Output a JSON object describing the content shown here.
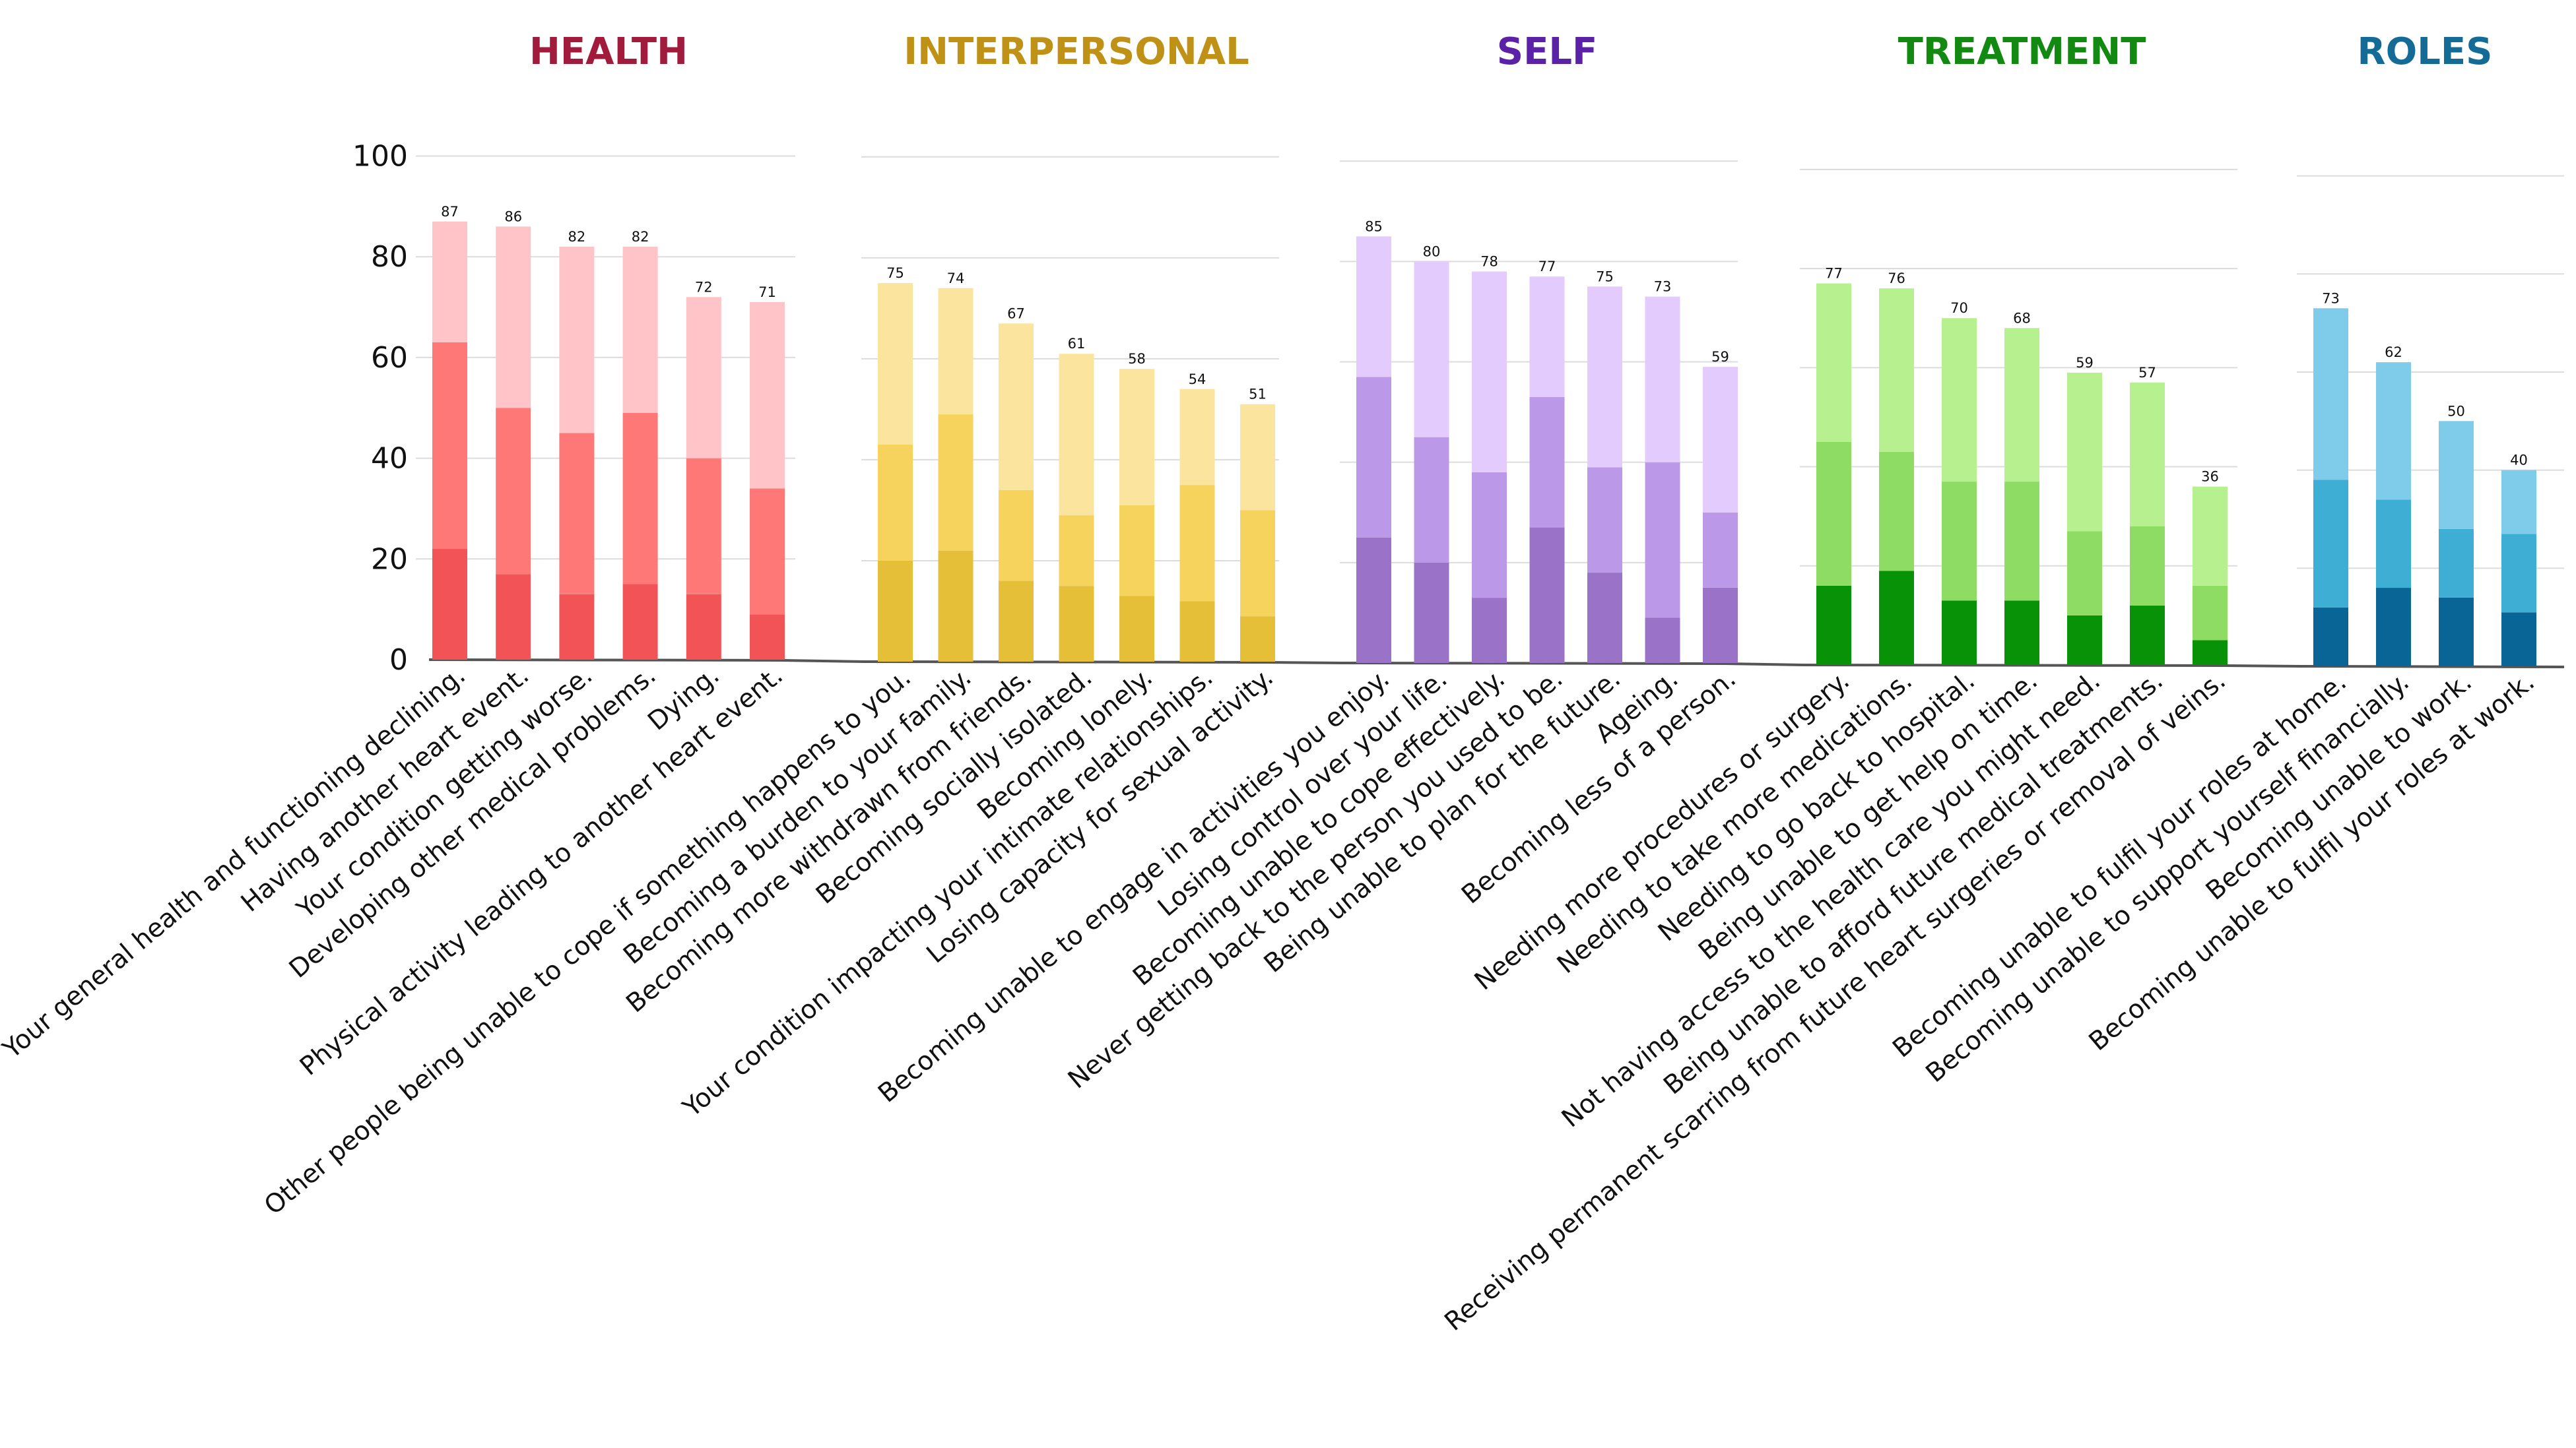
{
  "chart_data": {
    "type": "bar",
    "stacked": true,
    "ylim": [
      0,
      100
    ],
    "yticks": [
      0,
      20,
      40,
      60,
      80,
      100
    ],
    "grid": true,
    "groups": [
      {
        "title": "HEALTH",
        "color": "#a01b3c",
        "shades": [
          "#f25357",
          "#ff7878",
          "#ffc4c7"
        ],
        "bars": [
          {
            "label": "Your general health and functioning declining.",
            "segments": [
              22,
              41,
              24
            ],
            "total": "87"
          },
          {
            "label": "Having another heart event.",
            "segments": [
              17,
              33,
              36
            ],
            "total": "86"
          },
          {
            "label": "Your condition getting worse.",
            "segments": [
              13,
              32,
              37
            ],
            "total": "82"
          },
          {
            "label": "Developing other medical problems.",
            "segments": [
              15,
              34,
              33
            ],
            "total": "82"
          },
          {
            "label": "Dying.",
            "segments": [
              13,
              27,
              32
            ],
            "total": "72"
          },
          {
            "label": "Physical activity leading to another heart event.",
            "segments": [
              9,
              25,
              37
            ],
            "total": "71"
          }
        ]
      },
      {
        "title": "INTERPERSONAL",
        "color": "#bf9217",
        "shades": [
          "#e6bf38",
          "#f5d35d",
          "#fbe59e"
        ],
        "bars": [
          {
            "label": "Other people being unable to cope if something happens to you.",
            "segments": [
              20,
              23,
              32
            ],
            "total": "75"
          },
          {
            "label": "Becoming a burden to your family.",
            "segments": [
              22,
              27,
              25
            ],
            "total": "74"
          },
          {
            "label": "Becoming more withdrawn from friends.",
            "segments": [
              16,
              18,
              33
            ],
            "total": "67"
          },
          {
            "label": "Becoming socially isolated.",
            "segments": [
              15,
              14,
              32
            ],
            "total": "61"
          },
          {
            "label": "Becoming lonely.",
            "segments": [
              13,
              18,
              27
            ],
            "total": "58"
          },
          {
            "label": "Your condition impacting your intimate relationships.",
            "segments": [
              12,
              23,
              19
            ],
            "total": "54"
          },
          {
            "label": "Losing capacity for sexual activity.",
            "segments": [
              9,
              21,
              21
            ],
            "total": "51"
          }
        ]
      },
      {
        "title": "SELF",
        "color": "#5b22a8",
        "shades": [
          "#9a72c7",
          "#bb98e8",
          "#e3cbfd"
        ],
        "bars": [
          {
            "label": "Becoming unable to engage in activities you enjoy.",
            "segments": [
              25,
              32,
              28
            ],
            "total": "85"
          },
          {
            "label": "Losing control over your life.",
            "segments": [
              20,
              25,
              35
            ],
            "total": "80"
          },
          {
            "label": "Becoming unable to cope effectively.",
            "segments": [
              13,
              25,
              40
            ],
            "total": "78"
          },
          {
            "label": "Never getting back to the person you used to be.",
            "segments": [
              27,
              26,
              24
            ],
            "total": "77"
          },
          {
            "label": "Being unable to plan for the future.",
            "segments": [
              18,
              21,
              36
            ],
            "total": "75"
          },
          {
            "label": "Ageing.",
            "segments": [
              9,
              31,
              33
            ],
            "total": "73"
          },
          {
            "label": "Becoming less of a person.",
            "segments": [
              15,
              15,
              29
            ],
            "total": "59"
          }
        ]
      },
      {
        "title": "TREATMENT",
        "color": "#128a12",
        "shades": [
          "#079207",
          "#8edc64",
          "#b7f08f"
        ],
        "bars": [
          {
            "label": "Needing more procedures or surgery.",
            "segments": [
              16,
              29,
              32
            ],
            "total": "77"
          },
          {
            "label": "Needing to take more medications.",
            "segments": [
              19,
              24,
              33
            ],
            "total": "76"
          },
          {
            "label": "Needing to go back to hospital.",
            "segments": [
              13,
              24,
              33
            ],
            "total": "70"
          },
          {
            "label": "Being unable to get help on time.",
            "segments": [
              13,
              24,
              31
            ],
            "total": "68"
          },
          {
            "label": "Not having access to the health care you might need.",
            "segments": [
              10,
              17,
              32
            ],
            "total": "59"
          },
          {
            "label": "Being unable to afford future medical treatments.",
            "segments": [
              12,
              16,
              29
            ],
            "total": "57"
          },
          {
            "label": "Receiving permanent scarring from future heart surgeries or removal of veins.",
            "segments": [
              5,
              11,
              20
            ],
            "total": "36"
          }
        ]
      },
      {
        "title": "ROLES",
        "color": "#146c96",
        "shades": [
          "#0a6597",
          "#3eaed4",
          "#7fcbea"
        ],
        "bars": [
          {
            "label": "Becoming unable to fulfil your roles at home.",
            "segments": [
              12,
              26,
              35
            ],
            "total": "73"
          },
          {
            "label": "Becoming unable to support yourself financially.",
            "segments": [
              16,
              18,
              28
            ],
            "total": "62"
          },
          {
            "label": "Becoming unable to work.",
            "segments": [
              14,
              14,
              22
            ],
            "total": "50"
          },
          {
            "label": "Becoming unable to fulfil your roles at work.",
            "segments": [
              11,
              16,
              13
            ],
            "total": "40"
          }
        ]
      }
    ]
  }
}
